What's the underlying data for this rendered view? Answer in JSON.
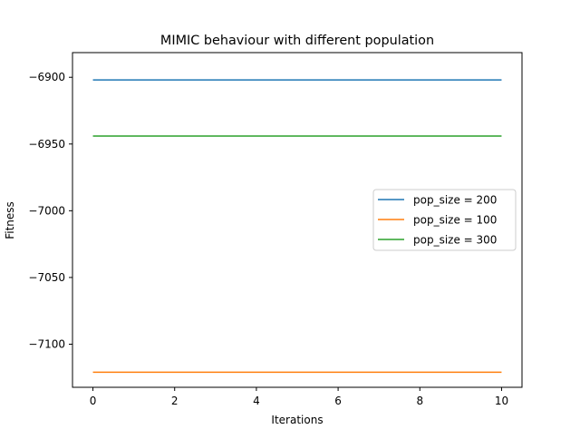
{
  "chart_data": {
    "type": "line",
    "title": "MIMIC behaviour with different population",
    "xlabel": "Iterations",
    "ylabel": "Fitness",
    "xlim": [
      -0.5,
      10.5
    ],
    "ylim": [
      -7132.3,
      -6881.5
    ],
    "xticks": [
      0,
      2,
      4,
      6,
      8,
      10
    ],
    "xtick_labels": [
      "0",
      "2",
      "4",
      "6",
      "8",
      "10"
    ],
    "yticks": [
      -6900,
      -6950,
      -7000,
      -7050,
      -7100
    ],
    "ytick_labels": [
      "−6900",
      "−6950",
      "−7000",
      "−7050",
      "−7100"
    ],
    "grid": false,
    "legend_position": "center-right",
    "x": [
      0,
      1,
      2,
      3,
      4,
      5,
      6,
      7,
      8,
      9,
      10
    ],
    "series": [
      {
        "name": "pop_size = 200",
        "color": "#1f77b4",
        "values": [
          -6902,
          -6902,
          -6902,
          -6902,
          -6902,
          -6902,
          -6902,
          -6902,
          -6902,
          -6902,
          -6902
        ]
      },
      {
        "name": "pop_size = 100",
        "color": "#ff7f0e",
        "values": [
          -7121,
          -7121,
          -7121,
          -7121,
          -7121,
          -7121,
          -7121,
          -7121,
          -7121,
          -7121,
          -7121
        ]
      },
      {
        "name": "pop_size = 300",
        "color": "#2ca02c",
        "values": [
          -6944,
          -6944,
          -6944,
          -6944,
          -6944,
          -6944,
          -6944,
          -6944,
          -6944,
          -6944,
          -6944
        ]
      }
    ]
  }
}
